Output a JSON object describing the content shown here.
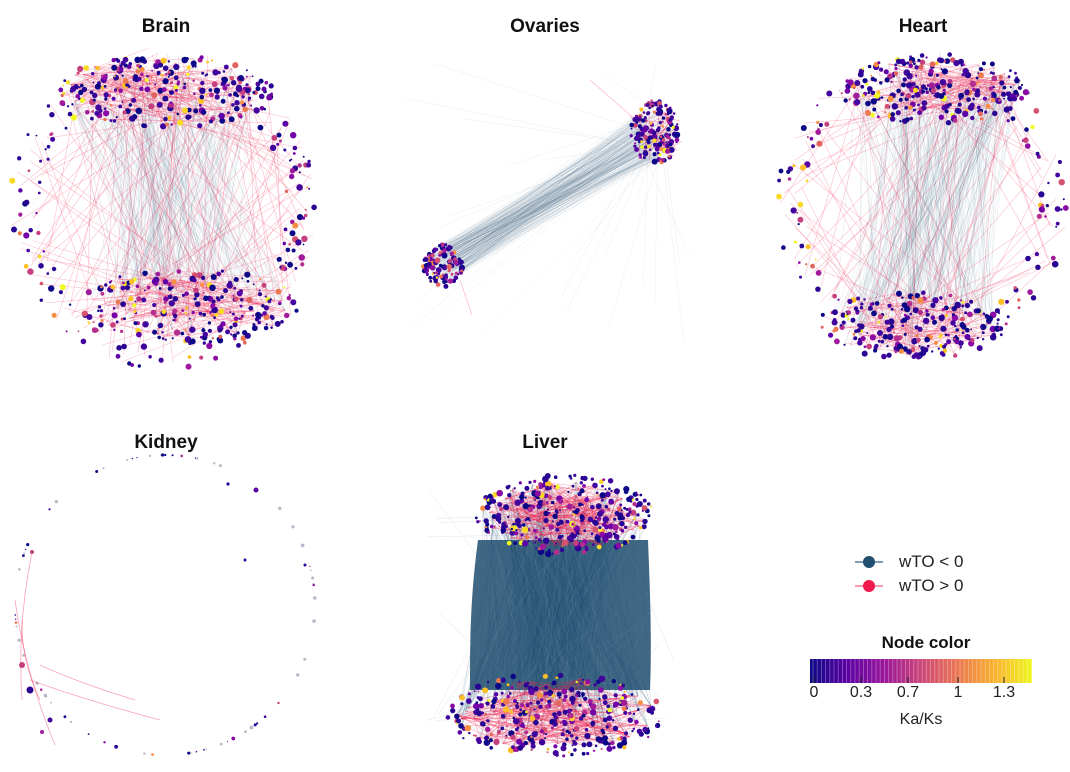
{
  "panels": [
    {
      "id": "brain",
      "title": "Brain"
    },
    {
      "id": "ovaries",
      "title": "Ovaries"
    },
    {
      "id": "heart",
      "title": "Heart"
    },
    {
      "id": "kidney",
      "title": "Kidney"
    },
    {
      "id": "liver",
      "title": "Liver"
    }
  ],
  "legend": {
    "edges": [
      {
        "label": "wTO < 0",
        "color": "#1f4e6e"
      },
      {
        "label": "wTO > 0",
        "color": "#f0194b"
      }
    ],
    "colorbar": {
      "title": "Node color",
      "ticks": [
        "0",
        "0.3",
        "0.7",
        "1",
        "1.3"
      ],
      "label": "Ka/Ks",
      "colors": [
        "#0d0887",
        "#5b02a3",
        "#9a179b",
        "#cb4678",
        "#eb7852",
        "#fbb32f",
        "#eff821"
      ]
    }
  }
}
